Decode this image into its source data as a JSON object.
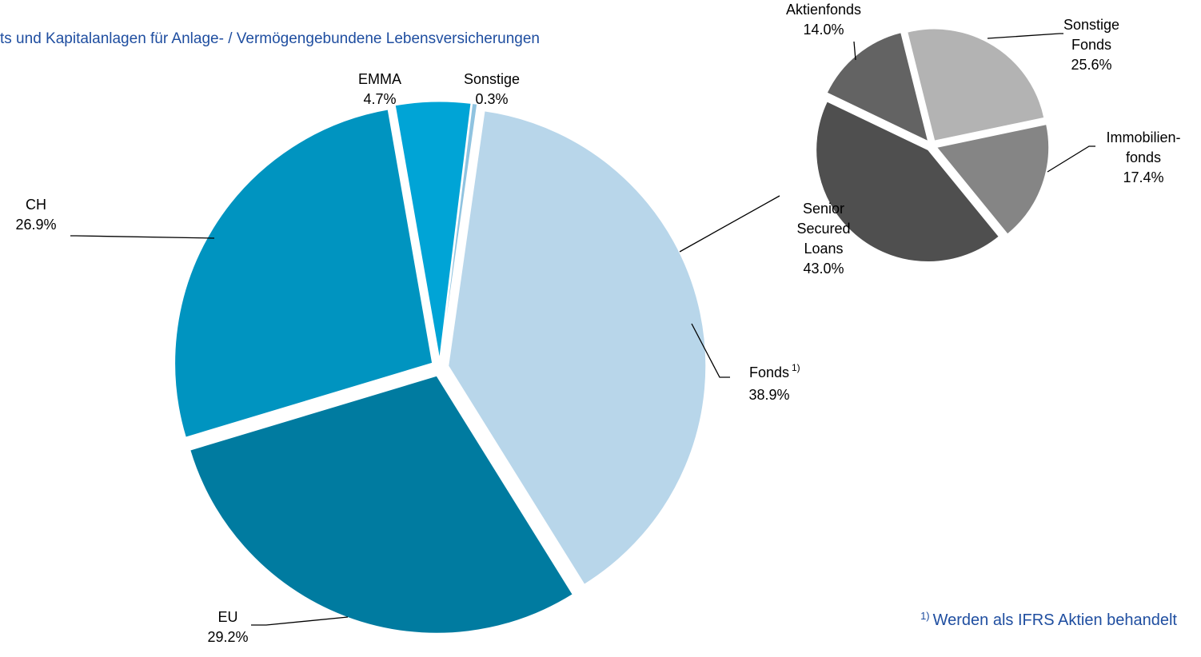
{
  "chart_data": [
    {
      "type": "pie",
      "title": "ts und Kapitalanlagen für Anlage- / Vermögengebundene Lebensversicherungen",
      "categories": [
        "Sonstige",
        "Fonds",
        "EU",
        "CH",
        "EMMA"
      ],
      "values": [
        0.3,
        38.9,
        29.2,
        26.9,
        4.7
      ],
      "value_labels": [
        "0.3%",
        "38.9%",
        "29.2%",
        "26.9%",
        "4.7%"
      ],
      "colors": [
        "#8fc3e0",
        "#b8d6ea",
        "#007ba0",
        "#0094c0",
        "#00a4d6"
      ],
      "footnote_marker": "1)"
    },
    {
      "type": "pie",
      "categories": [
        "Sonstige Fonds",
        "Immobilien- fonds",
        "Senior Secured Loans",
        "Aktienfonds"
      ],
      "values": [
        25.6,
        17.4,
        43.0,
        14.0
      ],
      "value_labels": [
        "25.6%",
        "17.4%",
        "43.0%",
        "14.0%"
      ],
      "colors": [
        "#b3b3b3",
        "#858585",
        "#4f4f4f",
        "#636363"
      ]
    }
  ],
  "footnote": {
    "marker": "1)",
    "text": "Werden als IFRS Aktien behandelt"
  }
}
